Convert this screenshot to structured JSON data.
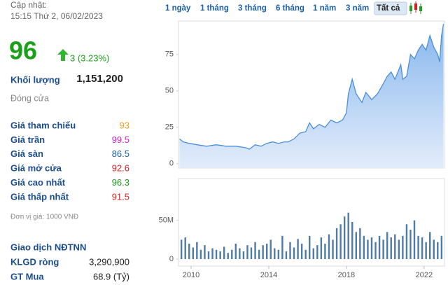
{
  "header": {
    "updated_label": "Cập nhật:",
    "updated_time": "15:15 Thứ 2, 06/02/2023"
  },
  "price": {
    "value": "96",
    "change": "3 (3.23%)",
    "volume_label": "Khối lượng",
    "volume": "1,151,200",
    "status": "Đóng cửa"
  },
  "rows": [
    {
      "label": "Giá tham chiếu",
      "value": "93",
      "color": "#f0a020"
    },
    {
      "label": "Giá trần",
      "value": "99.5",
      "color": "#d020d0"
    },
    {
      "label": "Giá sàn",
      "value": "86.5",
      "color": "#1a5fa8"
    },
    {
      "label": "Giá mở cửa",
      "value": "92.6",
      "color": "#e02020"
    },
    {
      "label": "Giá cao nhất",
      "value": "96.3",
      "color": "#1a9a1a"
    },
    {
      "label": "Giá thấp nhất",
      "value": "91.5",
      "color": "#e02020"
    }
  ],
  "unit_note": "Đơn vị giá: 1000 VNĐ",
  "foreign": {
    "title": "Giao dịch NĐTNN",
    "rows": [
      {
        "label": "KLGD ròng",
        "value": "3,290,900"
      },
      {
        "label": "GT Mua",
        "value": "68.9 (Tỷ)"
      }
    ]
  },
  "tabs": {
    "items": [
      "1 ngày",
      "1 tháng",
      "3 tháng",
      "6 tháng",
      "1 năm",
      "3 năm",
      "Tất cả"
    ],
    "active": 6
  },
  "chart_data": [
    {
      "type": "area",
      "color": "#4a8fd8",
      "grid": false,
      "x": [
        2009.4,
        2009.6,
        2009.9,
        2010.3,
        2010.8,
        2011.3,
        2011.8,
        2012.3,
        2012.8,
        2013.0,
        2013.3,
        2013.6,
        2013.9,
        2014.2,
        2014.5,
        2014.8,
        2015.0,
        2015.3,
        2015.6,
        2015.9,
        2016.1,
        2016.3,
        2016.6,
        2016.9,
        2017.2,
        2017.5,
        2017.8,
        2018.0,
        2018.1,
        2018.3,
        2018.5,
        2018.8,
        2019.0,
        2019.3,
        2019.6,
        2019.9,
        2020.1,
        2020.3,
        2020.5,
        2020.8,
        2020.9,
        2021.1,
        2021.3,
        2021.5,
        2021.7,
        2021.9,
        2022.1,
        2022.3,
        2022.5,
        2022.7,
        2022.8,
        2022.9,
        2023.0
      ],
      "values": [
        17,
        15,
        14,
        13,
        12,
        13,
        12,
        12,
        11,
        10,
        13,
        12,
        14,
        15,
        14,
        15,
        15,
        17,
        21,
        22,
        28,
        24,
        27,
        25,
        30,
        28,
        30,
        35,
        48,
        58,
        48,
        42,
        49,
        44,
        48,
        55,
        60,
        63,
        58,
        68,
        58,
        60,
        75,
        72,
        78,
        82,
        78,
        88,
        80,
        75,
        70,
        88,
        96
      ],
      "xlim": [
        2009.35,
        2023.05
      ],
      "ylim": [
        -3,
        98
      ],
      "yticks": [
        0,
        25,
        50,
        75
      ]
    },
    {
      "type": "bar",
      "color": "#4f7ba7",
      "grid": false,
      "x": [
        2009.5,
        2009.7,
        2009.9,
        2010.1,
        2010.3,
        2010.5,
        2010.7,
        2010.9,
        2011.1,
        2011.3,
        2011.5,
        2011.7,
        2011.9,
        2012.1,
        2012.3,
        2012.5,
        2012.7,
        2012.9,
        2013.1,
        2013.3,
        2013.5,
        2013.7,
        2013.9,
        2014.1,
        2014.3,
        2014.5,
        2014.7,
        2014.9,
        2015.1,
        2015.3,
        2015.5,
        2015.7,
        2015.9,
        2016.1,
        2016.3,
        2016.5,
        2016.7,
        2016.9,
        2017.1,
        2017.3,
        2017.5,
        2017.7,
        2017.9,
        2018.1,
        2018.3,
        2018.5,
        2018.7,
        2018.9,
        2019.1,
        2019.3,
        2019.5,
        2019.7,
        2019.9,
        2020.1,
        2020.3,
        2020.5,
        2020.7,
        2020.9,
        2021.1,
        2021.3,
        2021.5,
        2021.7,
        2021.9,
        2022.1,
        2022.3,
        2022.5,
        2022.7,
        2022.9
      ],
      "values": [
        25,
        28,
        20,
        15,
        22,
        12,
        18,
        10,
        14,
        12,
        10,
        16,
        8,
        12,
        20,
        14,
        10,
        18,
        15,
        22,
        12,
        18,
        20,
        25,
        14,
        12,
        30,
        10,
        22,
        15,
        26,
        20,
        12,
        30,
        14,
        18,
        28,
        20,
        32,
        25,
        40,
        45,
        55,
        60,
        48,
        35,
        40,
        30,
        25,
        28,
        22,
        30,
        25,
        35,
        28,
        32,
        25,
        30,
        45,
        38,
        50,
        30,
        28,
        22,
        35,
        25,
        22,
        30
      ],
      "xlim": [
        2009.35,
        2023.05
      ],
      "ylim": [
        -9,
        104
      ],
      "yticks": [
        0,
        {
          "value": 50,
          "label": "50M"
        }
      ],
      "xticks": [
        2010,
        2014,
        2018,
        2022
      ]
    }
  ]
}
